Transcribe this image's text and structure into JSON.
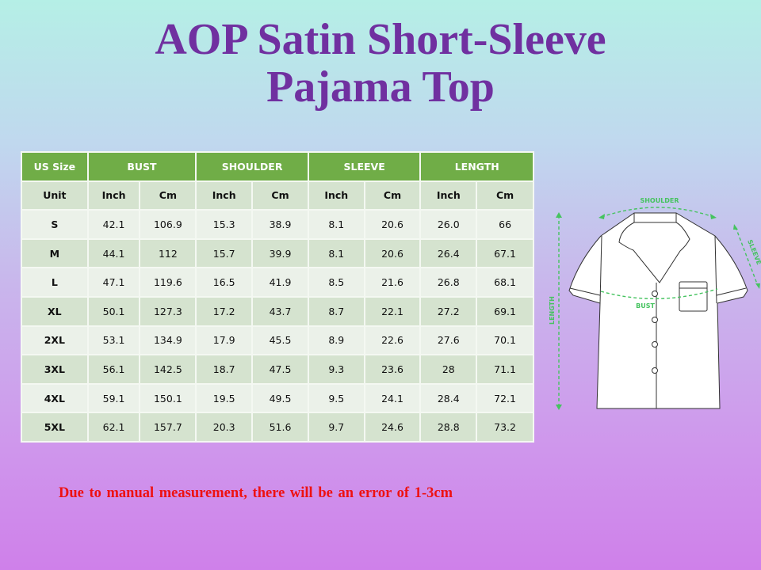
{
  "title": {
    "line1": "AOP Satin Short-Sleeve",
    "line2": "Pajama Top"
  },
  "table": {
    "group_headers": [
      "US Size",
      "BUST",
      "SHOULDER",
      "SLEEVE",
      "LENGTH"
    ],
    "unit_row": [
      "Unit",
      "Inch",
      "Cm",
      "Inch",
      "Cm",
      "Inch",
      "Cm",
      "Inch",
      "Cm"
    ],
    "rows": [
      [
        "S",
        "42.1",
        "106.9",
        "15.3",
        "38.9",
        "8.1",
        "20.6",
        "26.0",
        "66"
      ],
      [
        "M",
        "44.1",
        "112",
        "15.7",
        "39.9",
        "8.1",
        "20.6",
        "26.4",
        "67.1"
      ],
      [
        "L",
        "47.1",
        "119.6",
        "16.5",
        "41.9",
        "8.5",
        "21.6",
        "26.8",
        "68.1"
      ],
      [
        "XL",
        "50.1",
        "127.3",
        "17.2",
        "43.7",
        "8.7",
        "22.1",
        "27.2",
        "69.1"
      ],
      [
        "2XL",
        "53.1",
        "134.9",
        "17.9",
        "45.5",
        "8.9",
        "22.6",
        "27.6",
        "70.1"
      ],
      [
        "3XL",
        "56.1",
        "142.5",
        "18.7",
        "47.5",
        "9.3",
        "23.6",
        "28",
        "71.1"
      ],
      [
        "4XL",
        "59.1",
        "150.1",
        "19.5",
        "49.5",
        "9.5",
        "24.1",
        "28.4",
        "72.1"
      ],
      [
        "5XL",
        "62.1",
        "157.7",
        "20.3",
        "51.6",
        "9.7",
        "24.6",
        "28.8",
        "73.2"
      ]
    ]
  },
  "diagram": {
    "shoulder": "SHOULDER",
    "sleeve": "SLEEVE",
    "bust": "BUST",
    "length": "LENGTH"
  },
  "note": "Due to manual measurement, there will be an error of 1-3cm",
  "colors": {
    "title": "#7030a0",
    "header_green": "#70ad47",
    "note_red": "#ee1111",
    "measure_green": "#45c35f"
  }
}
